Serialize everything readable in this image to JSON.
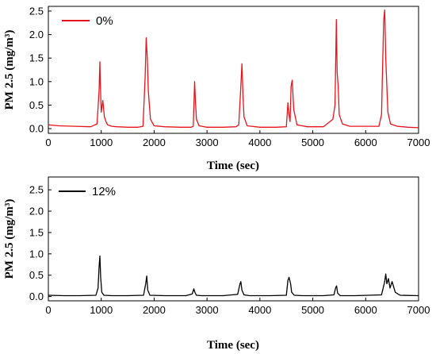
{
  "chart_data": [
    {
      "type": "line",
      "xlabel": "Time (sec)",
      "ylabel": "PM 2.5 (mg/m³)",
      "xlim": [
        0,
        7000
      ],
      "ylim": [
        -0.1,
        2.6
      ],
      "x_ticks": [
        0,
        1000,
        2000,
        3000,
        4000,
        5000,
        6000,
        7000
      ],
      "y_ticks": [
        0.0,
        0.5,
        1.0,
        1.5,
        2.0,
        2.5
      ],
      "grid": false,
      "legend_position": "top-left",
      "series": [
        {
          "name": "0%",
          "color": "#e8141b",
          "x": [
            0,
            200,
            500,
            800,
            920,
            960,
            975,
            985,
            1000,
            1030,
            1060,
            1090,
            1120,
            1200,
            1300,
            1500,
            1700,
            1790,
            1830,
            1850,
            1870,
            1890,
            1930,
            2000,
            2200,
            2500,
            2700,
            2740,
            2765,
            2780,
            2800,
            2850,
            3000,
            3300,
            3550,
            3600,
            3640,
            3660,
            3680,
            3700,
            3760,
            4000,
            4300,
            4500,
            4530,
            4550,
            4570,
            4590,
            4610,
            4640,
            4700,
            4900,
            5200,
            5380,
            5420,
            5445,
            5460,
            5480,
            5500,
            5560,
            5700,
            6000,
            6250,
            6300,
            6340,
            6360,
            6380,
            6420,
            6470,
            6600,
            6800,
            7000
          ],
          "y": [
            0.08,
            0.06,
            0.05,
            0.04,
            0.1,
            0.8,
            1.42,
            0.9,
            0.35,
            0.6,
            0.25,
            0.15,
            0.08,
            0.05,
            0.04,
            0.03,
            0.03,
            0.05,
            1.1,
            1.93,
            1.5,
            0.8,
            0.2,
            0.06,
            0.04,
            0.03,
            0.03,
            0.05,
            1.0,
            0.6,
            0.2,
            0.06,
            0.03,
            0.03,
            0.04,
            0.08,
            0.9,
            1.38,
            0.7,
            0.25,
            0.06,
            0.03,
            0.03,
            0.04,
            0.55,
            0.3,
            0.15,
            0.9,
            1.03,
            0.4,
            0.08,
            0.04,
            0.04,
            0.2,
            0.5,
            2.32,
            1.2,
            0.9,
            0.3,
            0.1,
            0.05,
            0.05,
            0.05,
            0.3,
            2.3,
            2.52,
            1.5,
            0.35,
            0.1,
            0.05,
            0.03,
            0.02
          ]
        }
      ]
    },
    {
      "type": "line",
      "xlabel": "Time (sec)",
      "ylabel": "PM 2.5 (mg/m³)",
      "xlim": [
        0,
        7000
      ],
      "ylim": [
        -0.1,
        2.8
      ],
      "x_ticks": [
        0,
        1000,
        2000,
        3000,
        4000,
        5000,
        6000,
        7000
      ],
      "y_ticks": [
        0.0,
        0.5,
        1.0,
        1.5,
        2.0,
        2.5
      ],
      "grid": false,
      "legend_position": "top-left",
      "series": [
        {
          "name": "12%",
          "color": "#000000",
          "x": [
            0,
            300,
            600,
            900,
            940,
            960,
            975,
            990,
            1010,
            1050,
            1200,
            1500,
            1800,
            1840,
            1860,
            1880,
            1920,
            2200,
            2600,
            2720,
            2750,
            2770,
            2800,
            2900,
            3300,
            3580,
            3620,
            3640,
            3660,
            3700,
            3800,
            4200,
            4500,
            4530,
            4550,
            4580,
            4600,
            4650,
            4800,
            5200,
            5400,
            5430,
            5450,
            5470,
            5520,
            5800,
            6300,
            6360,
            6380,
            6400,
            6430,
            6460,
            6500,
            6560,
            6650,
            7000
          ],
          "y": [
            0.03,
            0.02,
            0.02,
            0.03,
            0.2,
            0.7,
            0.95,
            0.45,
            0.1,
            0.03,
            0.02,
            0.02,
            0.03,
            0.3,
            0.48,
            0.15,
            0.03,
            0.02,
            0.02,
            0.06,
            0.18,
            0.1,
            0.03,
            0.02,
            0.02,
            0.05,
            0.28,
            0.35,
            0.15,
            0.04,
            0.02,
            0.02,
            0.03,
            0.38,
            0.45,
            0.3,
            0.1,
            0.03,
            0.02,
            0.02,
            0.04,
            0.2,
            0.25,
            0.08,
            0.02,
            0.02,
            0.04,
            0.35,
            0.53,
            0.3,
            0.42,
            0.2,
            0.35,
            0.1,
            0.03,
            0.02
          ]
        }
      ]
    }
  ]
}
